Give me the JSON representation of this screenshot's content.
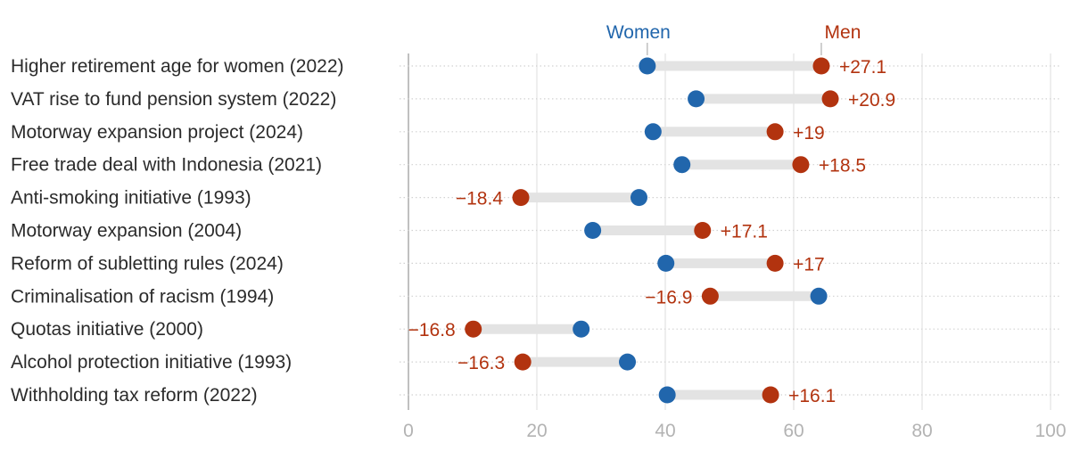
{
  "colors": {
    "women": "#2166ac",
    "men": "#b2330f",
    "connector": "#e3e3e3",
    "grid": "#dcdcdc",
    "dotted": "#d2d2d2",
    "axis": "#b0b0b0",
    "tick_text": "#b3b3b3",
    "label_text": "#2b2b2b"
  },
  "chart_data": {
    "type": "dumbbell",
    "title": "",
    "xlabel": "",
    "ylabel": "",
    "xlim": [
      0,
      100
    ],
    "ticks": [
      0,
      20,
      40,
      60,
      80,
      100
    ],
    "tick_labels": [
      "0",
      "20",
      "40",
      "60",
      "80",
      "100"
    ],
    "legend": {
      "women": "Women",
      "men": "Men"
    },
    "categories": [
      "Higher retirement age for women (2022)",
      "VAT rise to fund pension system (2022)",
      "Motorway expansion project (2024)",
      "Free trade deal with Indonesia (2021)",
      "Anti-smoking initiative (1993)",
      "Motorway expansion (2004)",
      "Reform of subletting rules (2024)",
      "Criminalisation of racism (1994)",
      "Quotas initiative (2000)",
      "Alcohol protection initiative (1993)",
      "Withholding tax reform (2022)"
    ],
    "series": [
      {
        "name": "Women",
        "values": [
          37.2,
          44.8,
          38.1,
          42.6,
          35.9,
          28.7,
          40.1,
          63.9,
          26.9,
          34.1,
          40.3
        ]
      },
      {
        "name": "Men",
        "values": [
          64.3,
          65.7,
          57.1,
          61.1,
          17.5,
          45.8,
          57.1,
          47.0,
          10.1,
          17.8,
          56.4
        ]
      }
    ],
    "diff_labels": [
      "+27.1",
      "+20.9",
      "+19",
      "+18.5",
      "−18.4",
      "+17.1",
      "+17",
      "−16.9",
      "−16.8",
      "−16.3",
      "+16.1"
    ]
  }
}
